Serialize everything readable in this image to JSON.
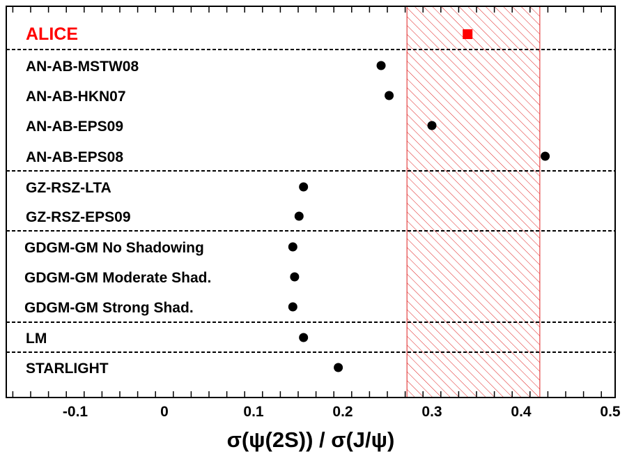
{
  "chart_data": {
    "type": "scatter",
    "xlabel": "σ(ψ(2S)) / σ(J/ψ)",
    "xlim": [
      -0.17,
      0.5
    ],
    "xticks": [
      "-0.1",
      "0",
      "0.1",
      "0.2",
      "0.3",
      "0.4",
      "0.5"
    ],
    "xtick_values": [
      -0.1,
      0,
      0.1,
      0.2,
      0.3,
      0.4,
      0.5
    ],
    "band": {
      "from": 0.272,
      "to": 0.421,
      "style": "hatched",
      "color": "#e02020"
    },
    "groups": [
      {
        "rows": [
          {
            "label": "ALICE",
            "value": 0.34,
            "marker": "square",
            "color": "#ff0000"
          }
        ]
      },
      {
        "rows": [
          {
            "label": "AN-AB-MSTW08",
            "value": 0.243,
            "marker": "circle",
            "color": "#000000"
          },
          {
            "label": "AN-AB-HKN07",
            "value": 0.252,
            "marker": "circle",
            "color": "#000000"
          },
          {
            "label": "AN-AB-EPS09",
            "value": 0.3,
            "marker": "circle",
            "color": "#000000"
          },
          {
            "label": "AN-AB-EPS08",
            "value": 0.427,
            "marker": "circle",
            "color": "#000000"
          }
        ]
      },
      {
        "rows": [
          {
            "label": "GZ-RSZ-LTA",
            "value": 0.156,
            "marker": "circle",
            "color": "#000000"
          },
          {
            "label": "GZ-RSZ-EPS09",
            "value": 0.151,
            "marker": "circle",
            "color": "#000000"
          }
        ]
      },
      {
        "rows": [
          {
            "label": "GDGM-GM No Shadowing",
            "value": 0.144,
            "marker": "circle",
            "color": "#000000"
          },
          {
            "label": "GDGM-GM Moderate Shad.",
            "value": 0.146,
            "marker": "circle",
            "color": "#000000"
          },
          {
            "label": "GDGM-GM Strong Shad.",
            "value": 0.144,
            "marker": "circle",
            "color": "#000000"
          }
        ]
      },
      {
        "rows": [
          {
            "label": "LM",
            "value": 0.156,
            "marker": "circle",
            "color": "#000000"
          }
        ]
      },
      {
        "rows": [
          {
            "label": "STARLIGHT",
            "value": 0.195,
            "marker": "circle",
            "color": "#000000"
          }
        ]
      }
    ]
  }
}
